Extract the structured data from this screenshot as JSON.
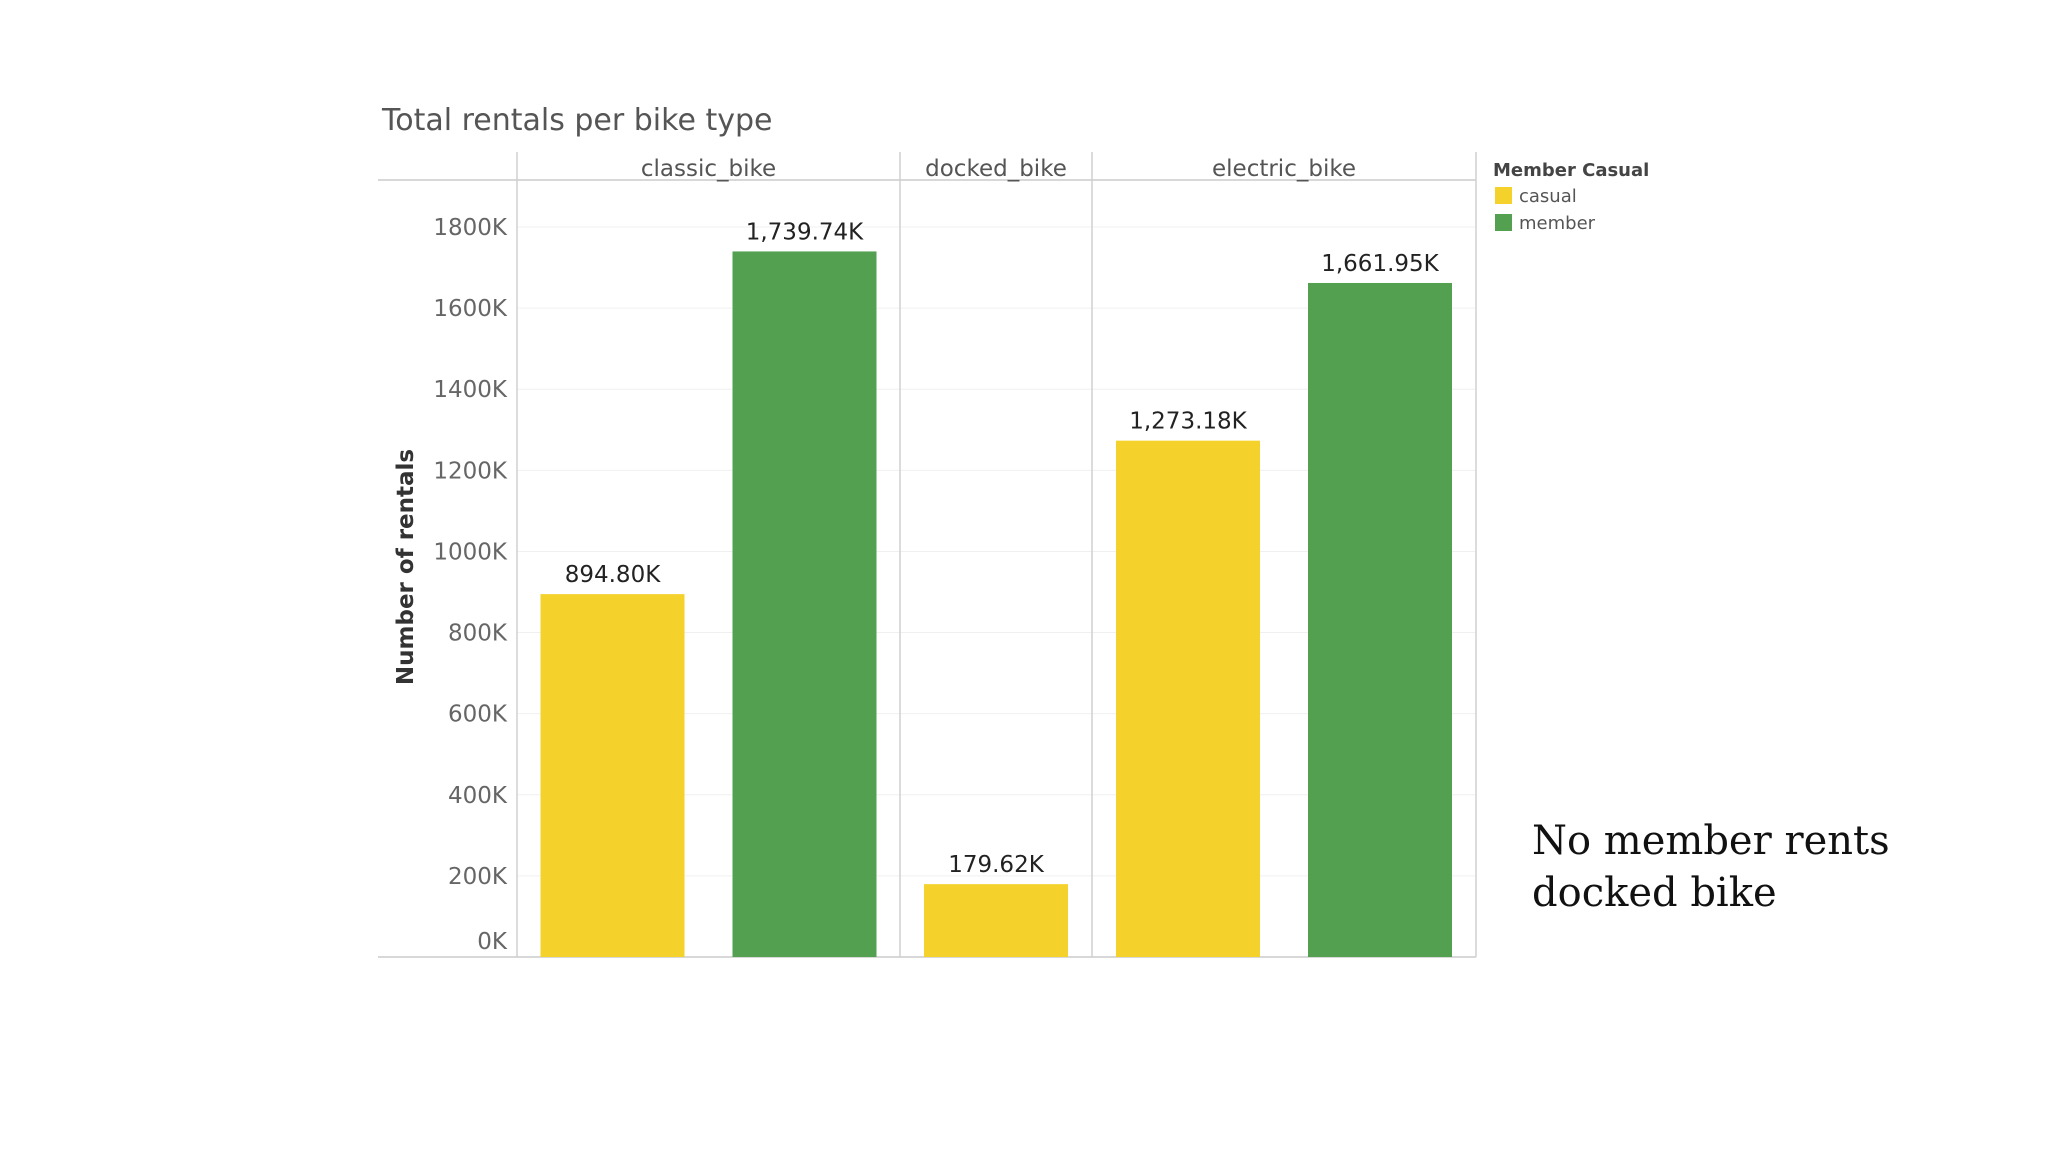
{
  "annotation": {
    "line1": "No member rents",
    "line2": "docked bike"
  },
  "chart_data": {
    "type": "bar",
    "title": "Total rentals per bike type",
    "xlabel": "",
    "ylabel": "Number of rentals",
    "ylim": [
      0,
      1900000
    ],
    "yticks": [
      0,
      200000,
      400000,
      600000,
      800000,
      1000000,
      1200000,
      1400000,
      1600000,
      1800000
    ],
    "ytick_labels": [
      "0K",
      "200K",
      "400K",
      "600K",
      "800K",
      "1000K",
      "1200K",
      "1400K",
      "1600K",
      "1800K"
    ],
    "grid": true,
    "categories": [
      "classic_bike",
      "docked_bike",
      "electric_bike"
    ],
    "legend": {
      "title": "Member Casual",
      "position": "top-right",
      "items": [
        {
          "label": "casual",
          "color": "#F5D22B"
        },
        {
          "label": "member",
          "color": "#52A050"
        }
      ]
    },
    "series": [
      {
        "name": "casual",
        "color": "#F5D22B",
        "values": [
          894800,
          179620,
          1273180
        ],
        "labels": [
          "894.80K",
          "179.62K",
          "1,273.18K"
        ]
      },
      {
        "name": "member",
        "color": "#52A050",
        "values": [
          1739740,
          null,
          1661950
        ],
        "labels": [
          "1,739.74K",
          "",
          "1,661.95K"
        ]
      }
    ]
  }
}
